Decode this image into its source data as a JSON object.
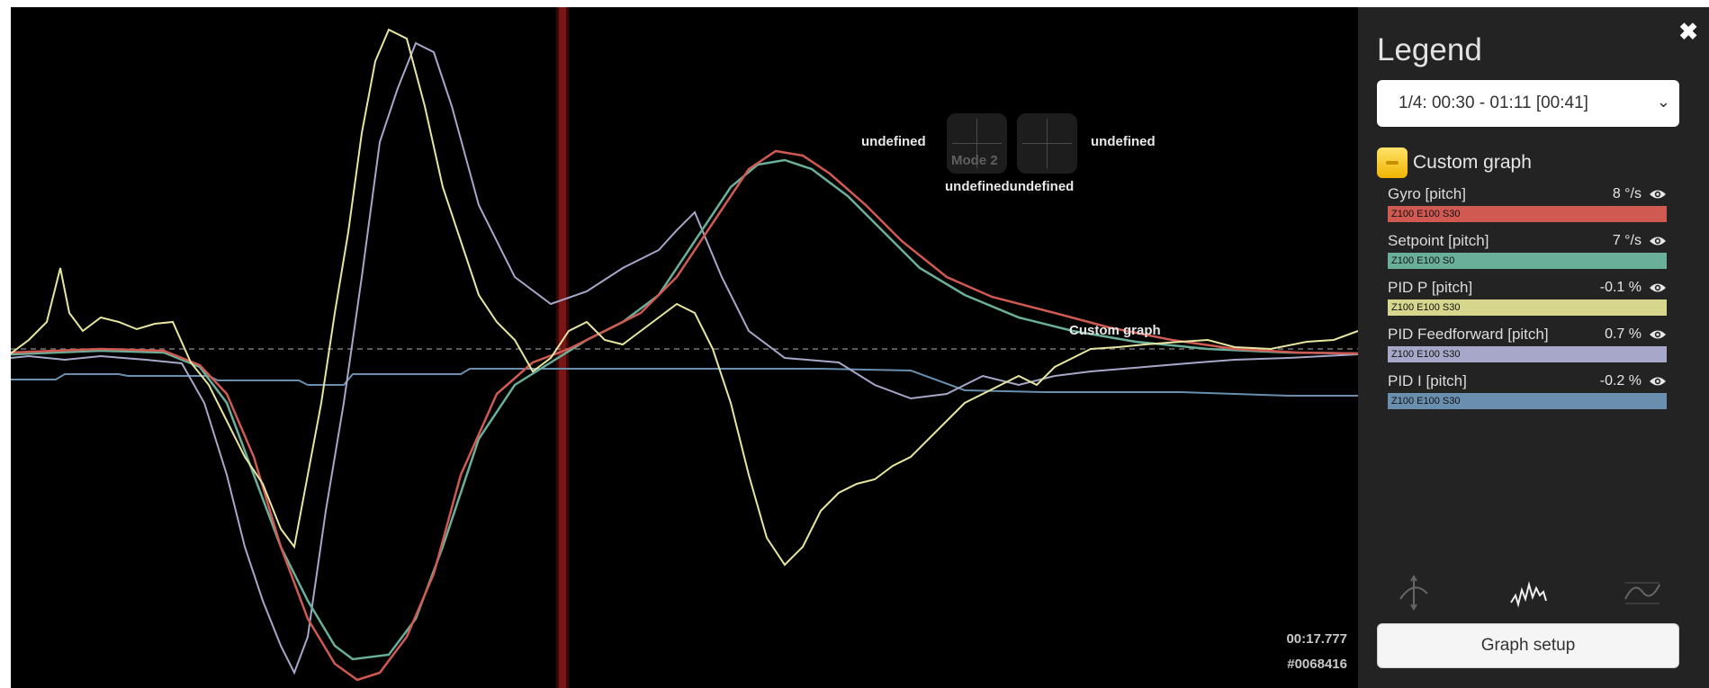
{
  "graph": {
    "time": "00:17.777",
    "frame": "#0068416",
    "group_label": "Custom graph",
    "stick_labels": {
      "left_top": "undefined",
      "right_top": "undefined",
      "bottom": "undefinedundefined",
      "mode": "Mode 2"
    },
    "colors": {
      "background": "#000000",
      "cursor": "#7a1515",
      "gyro": "#d05a52",
      "setpoint": "#6aaf9a",
      "pid_p": "#e6e6a0",
      "pid_ff": "#a7a7c9",
      "pid_i": "#6a8fae"
    }
  },
  "legend": {
    "title": "Legend",
    "close_icon": "close-icon",
    "log_select": "1/4: 00:30 - 01:11 [00:41]",
    "group": "Custom graph",
    "fields": [
      {
        "name": "Gyro [pitch]",
        "value": "8 °/s",
        "scale": "Z100 E100 S30",
        "color": "#d05a52"
      },
      {
        "name": "Setpoint [pitch]",
        "value": "7 °/s",
        "scale": "Z100 E100 S0",
        "color": "#6aaf9a"
      },
      {
        "name": "PID P [pitch]",
        "value": "-0.1 %",
        "scale": "Z100 E100 S30",
        "color": "#d6d68c"
      },
      {
        "name": "PID Feedforward [pitch]",
        "value": "0.7 %",
        "scale": "Z100 E100 S30",
        "color": "#a7a7c9"
      },
      {
        "name": "PID I [pitch]",
        "value": "-0.2 %",
        "scale": "Z100 E100 S30",
        "color": "#6a8fae"
      }
    ],
    "mode_icons": [
      "stick-mode-icon",
      "analyser-mode-icon",
      "spectrum-mode-icon"
    ],
    "graph_setup": "Graph setup"
  }
}
